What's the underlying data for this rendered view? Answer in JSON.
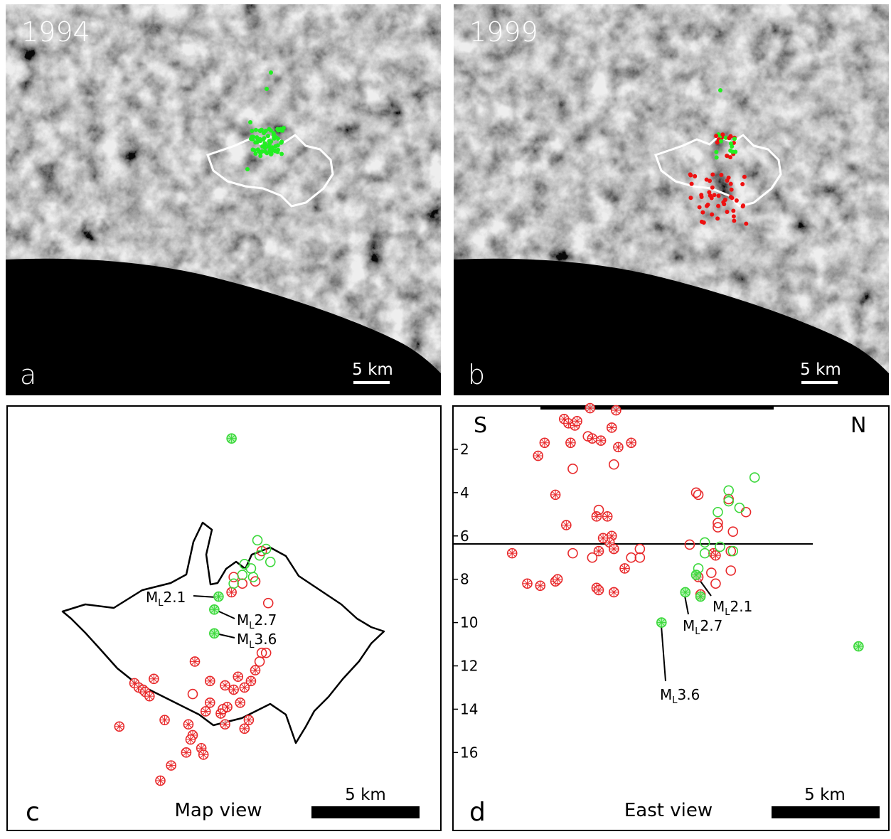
{
  "panels": {
    "a": {
      "label": "a",
      "year": "1994",
      "scale": "5 km"
    },
    "b": {
      "label": "b",
      "year": "1999",
      "scale": "5 km"
    },
    "c": {
      "label": "c",
      "caption": "Map view",
      "scale": "5 km",
      "xlim": [
        0,
        20.1
      ],
      "ylim": [
        0,
        19.6
      ],
      "annotations": [
        {
          "m": "M",
          "sub": "L",
          "mag": "2.1"
        },
        {
          "m": "M",
          "sub": "L",
          "mag": "2.7"
        },
        {
          "m": "M",
          "sub": "L",
          "mag": "3.6"
        }
      ],
      "groups": [
        {
          "color": "#e8282a",
          "marker": "star",
          "x": [
            5.9,
            6.1,
            6.3,
            6.4,
            6.6,
            6.8,
            8.7,
            9.4,
            10.7,
            11.3,
            11.5,
            10.1,
            10.5,
            10.8,
            10.2,
            9.9,
            10.1,
            11.0,
            11.2,
            9.4,
            9.2,
            8.4,
            8.6,
            8.5,
            8.3,
            9.0,
            9.1,
            7.6,
            7.1,
            5.2,
            7.3,
            11.0,
            10.4
          ],
          "y": [
            6.8,
            6.6,
            6.5,
            6.4,
            6.2,
            7.0,
            7.8,
            6.9,
            7.1,
            6.9,
            7.4,
            6.7,
            6.5,
            5.9,
            5.7,
            5.4,
            4.9,
            4.7,
            5.1,
            5.9,
            5.5,
            4.9,
            4.4,
            4.2,
            3.6,
            3.8,
            3.5,
            3.0,
            2.3,
            4.8,
            5.1,
            6.6,
            11.0
          ]
        },
        {
          "color": "#e8282a",
          "marker": "open",
          "x": [
            10.5,
            10.9,
            11.5,
            11.8,
            12.1,
            11.8,
            12.0,
            11.7,
            8.6,
            10.0
          ],
          "y": [
            11.7,
            11.4,
            11.5,
            12.9,
            10.5,
            8.2,
            8.2,
            7.8,
            6.3,
            5.6
          ]
        },
        {
          "color": "#3ad83a",
          "marker": "star",
          "x": [
            10.4,
            9.8,
            9.6,
            9.6
          ],
          "y": [
            18.1,
            10.8,
            10.2,
            9.1
          ]
        },
        {
          "color": "#3ad83a",
          "marker": "open",
          "x": [
            11.6,
            12.0,
            11.7,
            12.2,
            11.0,
            11.3,
            10.9,
            10.5,
            11.4
          ],
          "y": [
            13.4,
            13.0,
            12.7,
            12.4,
            12.3,
            12.1,
            11.8,
            11.4,
            11.7
          ]
        }
      ]
    },
    "d": {
      "label": "d",
      "caption": "East view",
      "scale": "5 km",
      "left": "S",
      "right": "N",
      "xlim": [
        0,
        20.1
      ],
      "ylim": [
        0,
        19.6
      ],
      "yticks": [
        2,
        4,
        6,
        8,
        10,
        12,
        14,
        16
      ],
      "annotations": [
        {
          "m": "M",
          "sub": "L",
          "mag": "2.1"
        },
        {
          "m": "M",
          "sub": "L",
          "mag": "2.7"
        },
        {
          "m": "M",
          "sub": "L",
          "mag": "3.6"
        }
      ],
      "groups": [
        {
          "color": "#e8282a",
          "marker": "star",
          "x": [
            2.7,
            3.4,
            4.0,
            4.7,
            4.8,
            5.2,
            4.7,
            5.1,
            5.3,
            5.6,
            5.7,
            6.3,
            7.5,
            6.8,
            7.3,
            7.6,
            8.2,
            4.2,
            3.9,
            5.4,
            6.4,
            6.6,
            7.1,
            7.3,
            7.2,
            7.4,
            6.9,
            6.7,
            6.6,
            6.7,
            7.4,
            7.9,
            11.3,
            11.4,
            12.0,
            12.1
          ],
          "y": [
            6.8,
            8.2,
            8.3,
            8.1,
            8.0,
            5.5,
            4.1,
            0.6,
            0.8,
            0.9,
            0.7,
            0.1,
            0.2,
            1.6,
            1.0,
            1.9,
            1.7,
            1.7,
            2.3,
            1.7,
            1.5,
            5.1,
            5.1,
            6.0,
            6.3,
            6.6,
            6.1,
            6.7,
            8.4,
            8.5,
            8.6,
            7.5,
            7.9,
            8.7,
            6.8,
            6.9
          ]
        },
        {
          "color": "#e8282a",
          "marker": "open",
          "x": [
            6.2,
            5.5,
            7.4,
            6.7,
            5.5,
            6.4,
            8.2,
            8.6,
            8.6,
            10.9,
            11.2,
            11.3,
            12.2,
            12.2,
            12.7,
            13.5,
            12.9,
            12.8,
            12.8,
            12.1,
            11.9
          ],
          "y": [
            1.4,
            2.9,
            2.7,
            4.8,
            6.8,
            7.0,
            7.0,
            6.6,
            7.0,
            6.4,
            4.0,
            4.1,
            5.6,
            5.4,
            4.3,
            4.9,
            5.8,
            6.7,
            7.6,
            8.2,
            7.7
          ]
        },
        {
          "color": "#3ad83a",
          "marker": "star",
          "x": [
            18.7,
            9.6,
            10.7,
            11.2,
            11.4
          ],
          "y": [
            11.1,
            10.0,
            8.6,
            7.8,
            8.8
          ]
        },
        {
          "color": "#3ad83a",
          "marker": "open",
          "x": [
            13.9,
            12.7,
            13.2,
            12.2,
            11.6,
            12.3,
            12.9,
            11.6,
            11.3,
            12.7
          ],
          "y": [
            3.3,
            3.9,
            4.7,
            4.9,
            6.3,
            6.5,
            6.7,
            6.8,
            7.5,
            4.4
          ]
        }
      ]
    }
  }
}
